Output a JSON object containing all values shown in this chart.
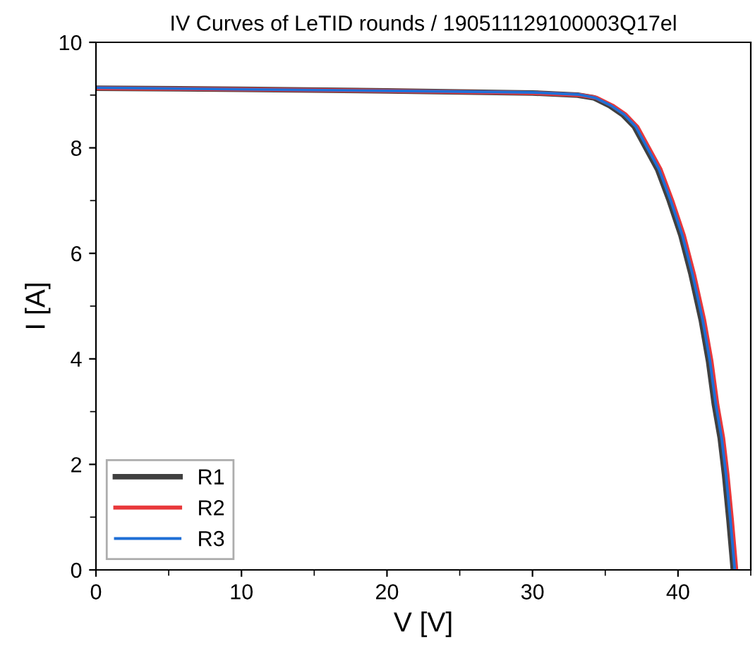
{
  "chart_data": {
    "type": "line",
    "title": "IV Curves of LeTID rounds / 190511129100003Q17el",
    "xlabel": "V [V]",
    "ylabel": "I [A]",
    "xlim": [
      0,
      45
    ],
    "xticks": [
      0,
      10,
      20,
      30,
      40
    ],
    "ylim": [
      0,
      10
    ],
    "yticks": [
      0,
      2,
      4,
      6,
      8,
      10
    ],
    "grid": false,
    "legend": "bottom left",
    "marker": "none",
    "line_style": "solid",
    "series": [
      {
        "name": "R1",
        "color": "#404040",
        "x": [
          0,
          10,
          20,
          30,
          33.1,
          34.2,
          35.3,
          36.2,
          37.0,
          38.6,
          39.4,
          40.2,
          40.9,
          41.6,
          42.1,
          42.5,
          42.9,
          43.2,
          43.5,
          43.8
        ],
        "values": [
          9.13,
          9.11,
          9.08,
          9.04,
          9.0,
          8.95,
          8.8,
          8.63,
          8.4,
          7.59,
          7.0,
          6.34,
          5.6,
          4.73,
          3.95,
          3.13,
          2.5,
          1.8,
          0.95,
          0
        ]
      },
      {
        "name": "R2",
        "color": "#e8383b",
        "x": [
          0,
          10,
          20,
          30,
          33.3,
          34.4,
          35.5,
          36.4,
          37.2,
          38.8,
          39.6,
          40.4,
          41.1,
          41.8,
          42.3,
          42.7,
          43.1,
          43.4,
          43.7,
          44.0
        ],
        "values": [
          9.13,
          9.11,
          9.08,
          9.04,
          9.0,
          8.95,
          8.8,
          8.63,
          8.4,
          7.59,
          7.0,
          6.34,
          5.6,
          4.73,
          3.95,
          3.13,
          2.5,
          1.8,
          0.95,
          0
        ]
      },
      {
        "name": "R3",
        "color": "#1f6fd6",
        "x": [
          0,
          10,
          20,
          30,
          33.2,
          34.3,
          35.4,
          36.3,
          37.1,
          38.7,
          39.5,
          40.3,
          41.0,
          41.7,
          42.2,
          42.6,
          43.0,
          43.3,
          43.6,
          43.9
        ],
        "values": [
          9.14,
          9.11,
          9.08,
          9.05,
          9.01,
          8.95,
          8.8,
          8.63,
          8.4,
          7.59,
          7.0,
          6.34,
          5.6,
          4.73,
          3.95,
          3.13,
          2.5,
          1.8,
          0.95,
          0
        ]
      }
    ]
  }
}
